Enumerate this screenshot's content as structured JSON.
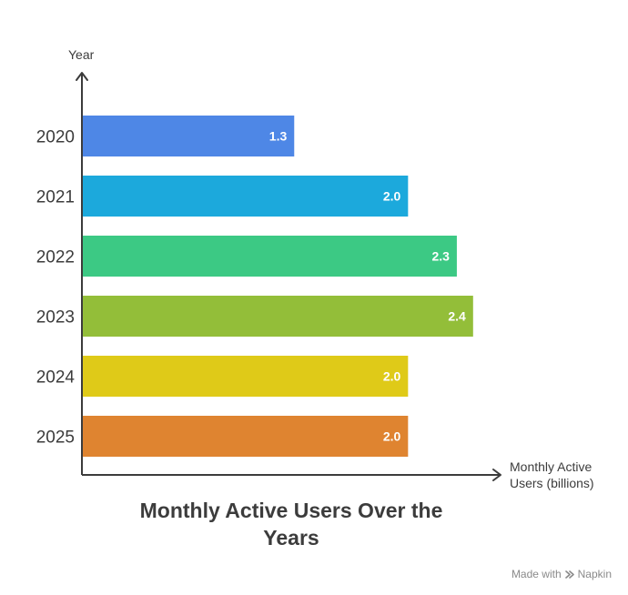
{
  "chart_data": {
    "type": "bar",
    "orientation": "horizontal",
    "categories": [
      "2020",
      "2021",
      "2022",
      "2023",
      "2024",
      "2025"
    ],
    "values": [
      1.3,
      2.0,
      2.3,
      2.4,
      2.0,
      2.0
    ],
    "value_labels": [
      "1.3",
      "2.0",
      "2.3",
      "2.4",
      "2.0",
      "2.0"
    ],
    "colors": [
      "#4e87e6",
      "#1ca9dc",
      "#3cc984",
      "#93be39",
      "#dfca18",
      "#df8430"
    ],
    "title": "Monthly Active Users Over the Years",
    "title_lines": [
      "Monthly Active Users Over the",
      "Years"
    ],
    "ylabel": "Year",
    "xlabel_lines": [
      "Monthly Active",
      "Users (billions)"
    ],
    "xlim": [
      0,
      3.0
    ],
    "grid": false,
    "legend": "none"
  },
  "footer": {
    "made_with": "Made with",
    "brand": "Napkin",
    "brand_icon": "napkin-logo-icon"
  }
}
